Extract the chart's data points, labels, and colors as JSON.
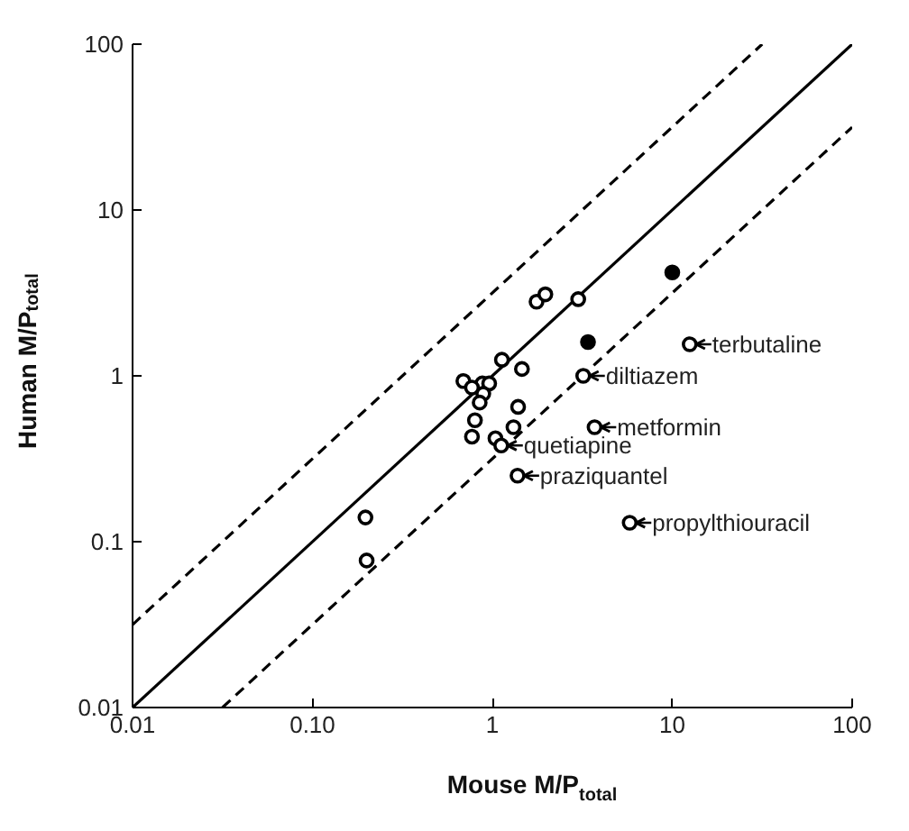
{
  "chart_data": {
    "type": "scatter",
    "xlabel": "Mouse M/P$_{total}$",
    "ylabel": "Human M/P$_{total}$",
    "xlim": [
      0.01,
      100
    ],
    "ylim": [
      0.01,
      100
    ],
    "log": "xy",
    "grid": false,
    "marker": "circle",
    "xticks": [
      0.01,
      {
        "value": 0.1,
        "label": "0.10"
      },
      1,
      10,
      100
    ],
    "yticks": [
      0.01,
      0.1,
      1,
      10,
      100
    ],
    "series": [
      {
        "color": "#ffffff",
        "x": [
          0.197,
          0.2,
          0.69,
          0.88,
          0.96,
          0.77,
          0.89,
          0.85,
          0.8,
          0.77,
          1.04,
          1.12,
          1.31,
          1.39,
          1.13,
          1.46,
          1.76,
          1.97,
          3.0,
          3.2,
          3.7,
          1.38,
          5.8,
          12.5
        ],
        "values": [
          0.14,
          0.077,
          0.93,
          0.9,
          0.9,
          0.85,
          0.78,
          0.69,
          0.54,
          0.43,
          0.42,
          0.38,
          0.49,
          0.65,
          1.25,
          1.1,
          2.8,
          3.1,
          2.9,
          1.0,
          0.49,
          0.25,
          0.13,
          1.55
        ]
      },
      {
        "color": "#000000",
        "x": [
          3.4,
          10
        ],
        "values": [
          1.6,
          4.2
        ]
      },
      {
        "type": "line",
        "marker": "none",
        "line_style": "solid",
        "color": "#000000",
        "x": [
          0.01,
          100
        ],
        "values": [
          0.01,
          100
        ]
      },
      {
        "type": "line",
        "marker": "none",
        "line_style": "dashed",
        "color": "#000000",
        "x": [
          0.01,
          31.6
        ],
        "values": [
          0.0316,
          100
        ]
      },
      {
        "type": "line",
        "marker": "none",
        "line_style": "dashed",
        "color": "#000000",
        "x": [
          0.0316,
          100
        ],
        "values": [
          0.01,
          31.6
        ]
      }
    ],
    "annotations": [
      {
        "text": "terbutaline",
        "x": 12.5,
        "y": 1.55
      },
      {
        "text": "diltiazem",
        "x": 3.2,
        "y": 1.0
      },
      {
        "text": "metformin",
        "x": 3.7,
        "y": 0.49
      },
      {
        "text": "quetiapine",
        "x": 1.12,
        "y": 0.38
      },
      {
        "text": "praziquantel",
        "x": 1.38,
        "y": 0.25
      },
      {
        "text": "propylthiouracil",
        "x": 5.8,
        "y": 0.13
      }
    ]
  }
}
